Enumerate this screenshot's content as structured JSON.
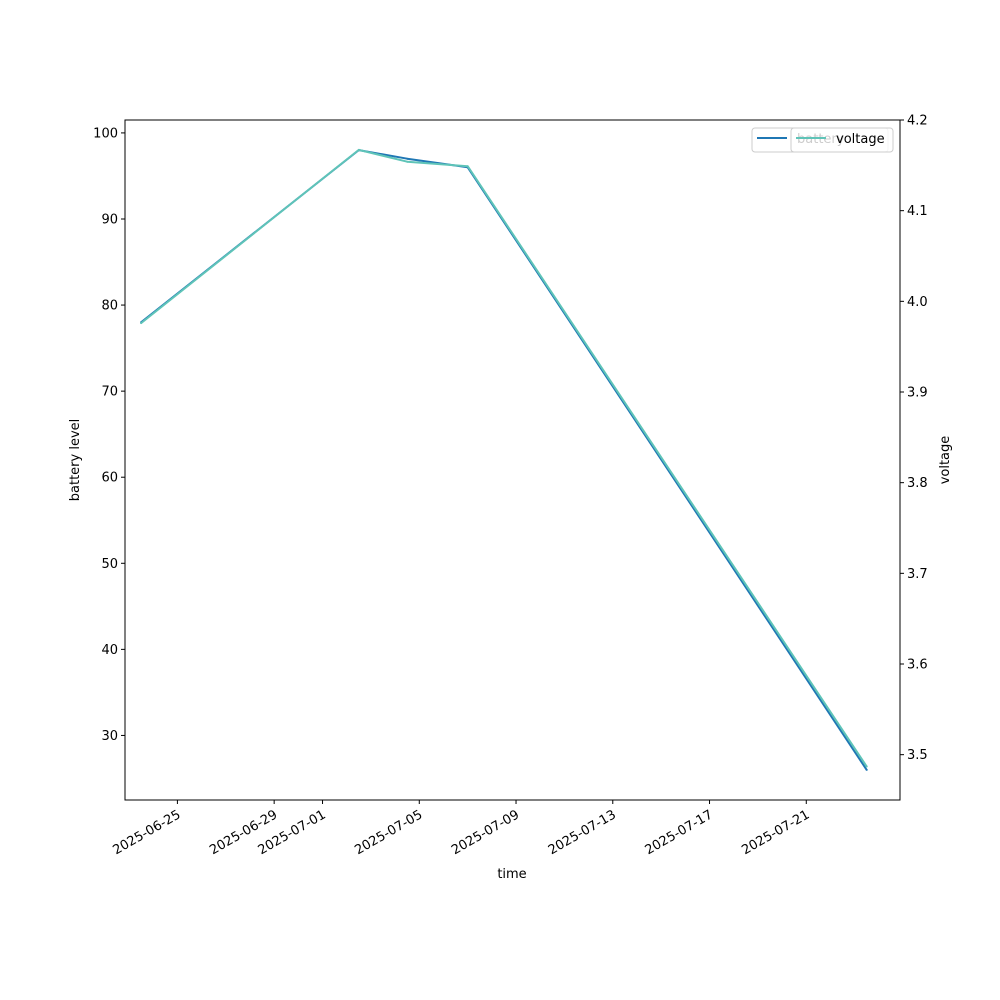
{
  "chart_data": {
    "type": "line",
    "xlabel": "time",
    "ylabel_left": "battery level",
    "ylabel_right": "voltage",
    "x_range": [
      "2025-06-22T20:00",
      "2025-07-24T21:00"
    ],
    "x_ticks": [
      "2025-06-25",
      "2025-06-29",
      "2025-07-01",
      "2025-07-05",
      "2025-07-09",
      "2025-07-13",
      "2025-07-17",
      "2025-07-21"
    ],
    "ylim_left": [
      22.5,
      101.5
    ],
    "y_ticks_left": [
      30,
      40,
      50,
      60,
      70,
      80,
      90,
      100
    ],
    "ylim_right": [
      3.45,
      4.2
    ],
    "y_ticks_right": [
      3.5,
      3.6,
      3.7,
      3.8,
      3.9,
      4.0,
      4.1,
      4.2
    ],
    "grid": false,
    "legend_placement": "top-right",
    "series": [
      {
        "name": "battery",
        "axis": "left",
        "color": "#1f77b4",
        "x": [
          "2025-06-23T12:00",
          "2025-07-02T12:00",
          "2025-07-04T12:00",
          "2025-07-07T00:00",
          "2025-07-23T12:00"
        ],
        "values": [
          78,
          98,
          97,
          96,
          26
        ]
      },
      {
        "name": "voltage",
        "axis": "right",
        "color": "#5fc4b8",
        "x": [
          "2025-06-23T12:00",
          "2025-07-02T12:00",
          "2025-07-04T12:00",
          "2025-07-07T00:00",
          "2025-07-23T12:00"
        ],
        "values": [
          3.976,
          4.167,
          4.154,
          4.149,
          3.487
        ]
      }
    ],
    "legends": [
      {
        "label": "battery",
        "color": "#1f77b4"
      },
      {
        "label": "voltage",
        "color": "#5fc4b8"
      }
    ]
  }
}
